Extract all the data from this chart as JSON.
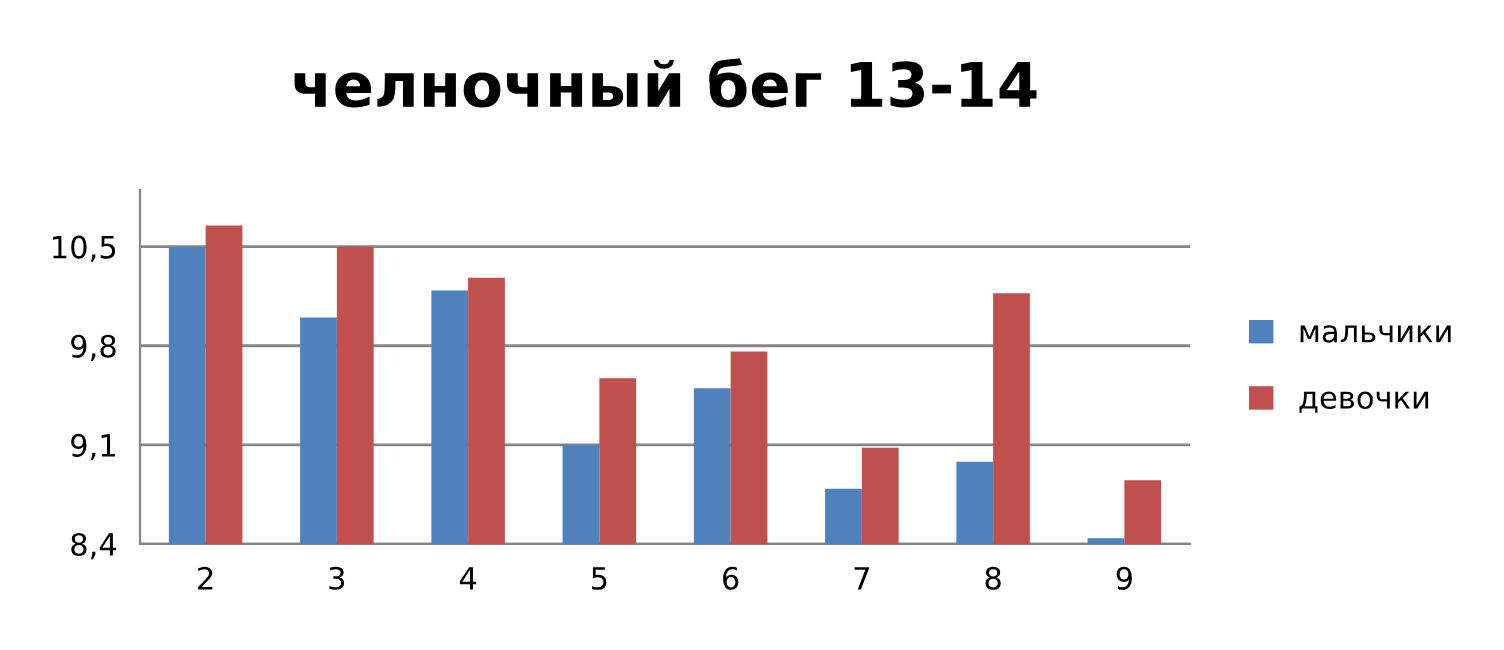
{
  "chart_data": {
    "type": "bar",
    "title": "челночный бег 13-14",
    "categories": [
      "2",
      "3",
      "4",
      "5",
      "6",
      "7",
      "8",
      "9"
    ],
    "series": [
      {
        "name": "мальчики",
        "color": "#4f81bd",
        "values": [
          10.5,
          10.0,
          10.19,
          9.1,
          9.5,
          8.79,
          8.98,
          8.44
        ]
      },
      {
        "name": "девочки",
        "color": "#c0504d",
        "values": [
          10.65,
          10.5,
          10.28,
          9.57,
          9.76,
          9.08,
          10.17,
          8.85
        ]
      }
    ],
    "ylim": [
      8.4,
      10.9
    ],
    "yticks": [
      {
        "value": 8.4,
        "label": "8,4"
      },
      {
        "value": 9.1,
        "label": "9,1"
      },
      {
        "value": 9.8,
        "label": "9,8"
      },
      {
        "value": 10.5,
        "label": "10,5"
      }
    ],
    "grid": "y",
    "legend": "right"
  }
}
